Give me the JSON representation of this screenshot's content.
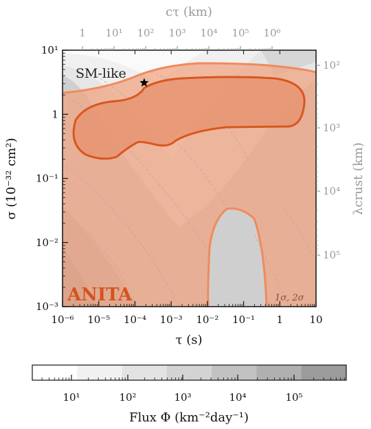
{
  "chart_data": {
    "type": "contour",
    "x_axis": {
      "label": "τ (s)",
      "scale": "log",
      "range": [
        1e-06,
        10
      ],
      "tick_labels": [
        "10⁻⁶",
        "10⁻⁵",
        "10⁻⁴",
        "10⁻³",
        "10⁻²",
        "10⁻¹",
        "1",
        "10"
      ]
    },
    "y_axis": {
      "label": "σ (10⁻³² cm²)",
      "scale": "log",
      "range": [
        0.001,
        10
      ],
      "tick_labels": [
        "10⁻³",
        "10⁻²",
        "10⁻¹",
        "1",
        "10¹"
      ]
    },
    "top_axis": {
      "label": "cτ (km)",
      "tick_labels": [
        "1",
        "10¹",
        "10²",
        "10³",
        "10⁴",
        "10⁵",
        "10⁶"
      ]
    },
    "right_axis": {
      "label": "λcrust (km)",
      "tick_labels": [
        "10²",
        "10³",
        "10⁴",
        "10⁵"
      ]
    },
    "colorbar": {
      "label": "Flux Φ (km⁻²day⁻¹)",
      "tick_labels": [
        "10¹",
        "10²",
        "10³",
        "10⁴",
        "10⁵"
      ],
      "colors": [
        "#ffffff",
        "#f1f1f1",
        "#e3e3e3",
        "#d3d3d3",
        "#c2c2c2",
        "#b0b0b0",
        "#9b9b9b"
      ]
    },
    "annotations": {
      "sm_like": "SM-like",
      "anita": "ANITA",
      "sigma_levels": "1σ, 2σ"
    },
    "star_point": {
      "tau": 0.00018,
      "sigma": 3.1
    },
    "colors": {
      "region_2sigma": "#f0a27f",
      "region_1sigma_fill": "#e58f6a",
      "contour_1sigma": "#d9561f",
      "contour_2sigma": "#f08a5d",
      "anita_text": "#d4531f"
    }
  }
}
